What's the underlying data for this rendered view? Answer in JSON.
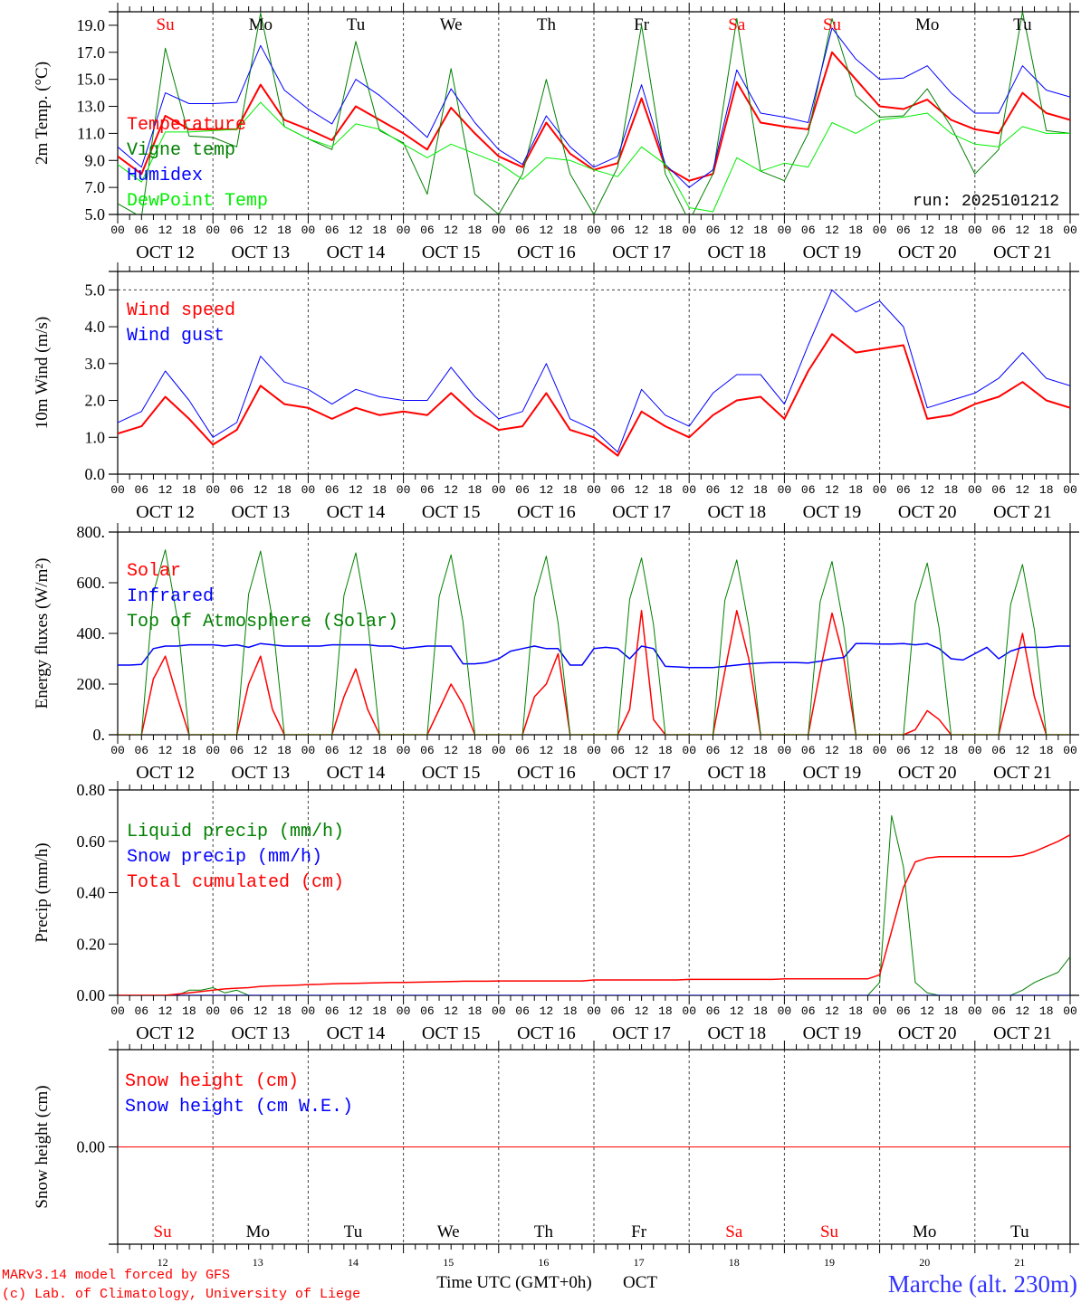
{
  "x_axis": {
    "hour_labels": [
      "00",
      "06",
      "12",
      "18"
    ],
    "date_labels": [
      "OCT 12",
      "OCT 13",
      "OCT 14",
      "OCT 15",
      "OCT 16",
      "OCT 17",
      "OCT 18",
      "OCT 19",
      "OCT 20",
      "OCT 21"
    ],
    "final_hour_label": "00",
    "day_names": [
      "Su",
      "Mo",
      "Tu",
      "We",
      "Th",
      "Fr",
      "Sa",
      "Su",
      "Mo",
      "Tu"
    ],
    "day_name_colors": [
      "#ff0000",
      "#000000",
      "#000000",
      "#000000",
      "#000000",
      "#000000",
      "#ff0000",
      "#ff0000",
      "#000000",
      "#000000"
    ],
    "day_numbers": [
      "12",
      "13",
      "14",
      "15",
      "16",
      "17",
      "18",
      "19",
      "20",
      "21"
    ],
    "xlabel": "Time UTC (GMT+0h)",
    "month": "OCT",
    "range_hours": [
      0,
      240
    ]
  },
  "footer": {
    "model": "MARv3.14 model forced by GFS",
    "credit": "(c) Lab. of Climatology, University of Liege",
    "location": "Marche (alt. 230m)"
  },
  "run_label": "run: 2025101212",
  "chart_data": [
    {
      "type": "line",
      "id": "temperature",
      "ylabel": "2m Temp. (°C)",
      "ylim": [
        5,
        20
      ],
      "yticks": [
        5,
        7,
        9,
        11,
        13,
        15,
        17,
        19
      ],
      "ytick_labels": [
        "5.0",
        "7.0",
        "9.0",
        "11.0",
        "13.0",
        "15.0",
        "17.0",
        "19.0"
      ],
      "series": [
        {
          "name": "Temperature",
          "color": "#ff0000",
          "width": 2,
          "step_hours": 6,
          "values": [
            9.3,
            8.0,
            12.3,
            11.3,
            11.3,
            11.3,
            14.6,
            12.0,
            11.3,
            10.5,
            13.0,
            12.0,
            11.0,
            9.8,
            12.9,
            11.0,
            9.3,
            8.5,
            11.8,
            9.5,
            8.3,
            8.8,
            13.6,
            8.5,
            7.5,
            8.0,
            14.8,
            11.8,
            11.5,
            11.3,
            17.0,
            15.0,
            13.0,
            12.8,
            13.5,
            12.0,
            11.3,
            11.0,
            14.0,
            12.5,
            12.0
          ]
        },
        {
          "name": "Vigne temp",
          "color": "#008000",
          "width": 1,
          "step_hours": 6,
          "values": [
            5.8,
            4.8,
            17.3,
            10.8,
            10.7,
            10.0,
            19.9,
            11.5,
            10.6,
            9.8,
            17.8,
            11.2,
            10.3,
            6.5,
            15.8,
            6.5,
            5.0,
            8.0,
            15.0,
            8.0,
            5.0,
            8.5,
            19.0,
            8.0,
            4.5,
            8.0,
            19.5,
            8.2,
            7.5,
            11.0,
            19.5,
            13.8,
            12.2,
            12.3,
            14.3,
            11.5,
            8.0,
            9.8,
            20.0,
            11.2,
            11.0
          ]
        },
        {
          "name": "Humidex",
          "color": "#0000ff",
          "width": 1,
          "step_hours": 6,
          "values": [
            10.0,
            8.5,
            14.0,
            13.2,
            13.2,
            13.3,
            17.5,
            14.2,
            12.8,
            11.7,
            15.0,
            13.8,
            12.3,
            10.7,
            14.3,
            11.8,
            9.8,
            8.7,
            12.3,
            10.0,
            8.5,
            9.3,
            14.6,
            8.7,
            7.0,
            8.3,
            15.7,
            12.5,
            12.2,
            11.8,
            18.8,
            16.5,
            15.0,
            15.1,
            16.0,
            14.0,
            12.5,
            12.5,
            16.0,
            14.2,
            13.7
          ]
        },
        {
          "name": "DewPoint Temp",
          "color": "#00ee00",
          "width": 1,
          "step_hours": 6,
          "values": [
            8.7,
            7.4,
            11.1,
            11.1,
            11.2,
            11.3,
            13.3,
            11.5,
            10.6,
            10.0,
            11.7,
            11.3,
            10.2,
            9.2,
            10.2,
            9.5,
            8.8,
            7.6,
            9.2,
            9.0,
            8.3,
            7.8,
            10.0,
            8.7,
            5.5,
            5.2,
            9.2,
            8.2,
            8.8,
            8.5,
            11.8,
            11.0,
            12.0,
            12.2,
            12.5,
            11.0,
            10.2,
            10.0,
            11.5,
            11.0,
            11.0
          ]
        }
      ]
    },
    {
      "type": "line",
      "id": "wind",
      "ylabel": "10m Wind (m/s)",
      "ylim": [
        0,
        5.5
      ],
      "yticks": [
        0,
        1,
        2,
        3,
        4,
        5
      ],
      "ytick_labels": [
        "0.0",
        "1.0",
        "2.0",
        "3.0",
        "4.0",
        "5.0"
      ],
      "reference_line": 5.0,
      "series": [
        {
          "name": "Wind speed",
          "color": "#ff0000",
          "width": 2,
          "step_hours": 6,
          "values": [
            1.1,
            1.3,
            2.1,
            1.5,
            0.8,
            1.2,
            2.4,
            1.9,
            1.8,
            1.5,
            1.8,
            1.6,
            1.7,
            1.6,
            2.2,
            1.6,
            1.2,
            1.3,
            2.2,
            1.2,
            1.0,
            0.5,
            1.7,
            1.3,
            1.0,
            1.6,
            2.0,
            2.1,
            1.5,
            2.8,
            3.8,
            3.3,
            3.4,
            3.5,
            1.5,
            1.6,
            1.9,
            2.1,
            2.5,
            2.0,
            1.8
          ]
        },
        {
          "name": "Wind gust",
          "color": "#0000ff",
          "width": 1,
          "step_hours": 6,
          "values": [
            1.4,
            1.7,
            2.8,
            2.0,
            1.0,
            1.4,
            3.2,
            2.5,
            2.3,
            1.9,
            2.3,
            2.1,
            2.0,
            2.0,
            2.9,
            2.1,
            1.5,
            1.7,
            3.0,
            1.5,
            1.2,
            0.6,
            2.3,
            1.6,
            1.3,
            2.2,
            2.7,
            2.7,
            1.9,
            3.5,
            5.0,
            4.4,
            4.7,
            4.0,
            1.8,
            2.0,
            2.2,
            2.6,
            3.3,
            2.6,
            2.4
          ]
        }
      ]
    },
    {
      "type": "line",
      "id": "energy",
      "ylabel": "Energy fluxes (W/m²)",
      "ylim": [
        0,
        800
      ],
      "yticks": [
        0,
        200,
        400,
        600,
        800
      ],
      "ytick_labels": [
        "0.",
        "200.",
        "400.",
        "600.",
        "800."
      ],
      "series": [
        {
          "name": "Solar",
          "color": "#ff0000",
          "width": 1.5,
          "step_hours": 3,
          "values": [
            0,
            0,
            0,
            220,
            310,
            150,
            0,
            0,
            0,
            0,
            0,
            200,
            310,
            100,
            0,
            0,
            0,
            0,
            0,
            150,
            260,
            100,
            0,
            0,
            0,
            0,
            0,
            100,
            200,
            120,
            0,
            0,
            0,
            0,
            0,
            150,
            200,
            320,
            0,
            0,
            0,
            0,
            0,
            100,
            490,
            60,
            0,
            0,
            0,
            0,
            0,
            250,
            490,
            300,
            0,
            0,
            0,
            0,
            0,
            250,
            480,
            300,
            0,
            0,
            0,
            0,
            0,
            20,
            95,
            60,
            0,
            0,
            0,
            0,
            0,
            200,
            400,
            150,
            0,
            0,
            0
          ]
        },
        {
          "name": "Infrared",
          "color": "#0000ff",
          "width": 1.5,
          "step_hours": 3,
          "values": [
            275,
            275,
            278,
            340,
            350,
            350,
            355,
            355,
            355,
            350,
            355,
            345,
            360,
            355,
            350,
            350,
            350,
            350,
            355,
            355,
            355,
            355,
            350,
            350,
            340,
            345,
            350,
            350,
            350,
            280,
            280,
            285,
            300,
            330,
            340,
            350,
            340,
            340,
            275,
            275,
            340,
            345,
            340,
            300,
            350,
            340,
            270,
            268,
            265,
            265,
            265,
            270,
            275,
            280,
            283,
            285,
            285,
            285,
            283,
            290,
            300,
            305,
            360,
            360,
            358,
            358,
            360,
            355,
            360,
            340,
            300,
            295,
            320,
            345,
            300,
            330,
            345,
            345,
            345,
            350,
            350
          ]
        },
        {
          "name": "Top of Atmosphere (Solar)",
          "color": "#008000",
          "width": 1,
          "step_hours": 3,
          "values": [
            0,
            0,
            0,
            560,
            730,
            460,
            0,
            0,
            0,
            0,
            0,
            555,
            725,
            455,
            0,
            0,
            0,
            0,
            0,
            550,
            718,
            450,
            0,
            0,
            0,
            0,
            0,
            545,
            710,
            445,
            0,
            0,
            0,
            0,
            0,
            540,
            705,
            440,
            0,
            0,
            0,
            0,
            0,
            535,
            698,
            435,
            0,
            0,
            0,
            0,
            0,
            530,
            690,
            430,
            0,
            0,
            0,
            0,
            0,
            525,
            684,
            425,
            0,
            0,
            0,
            0,
            0,
            520,
            678,
            420,
            0,
            0,
            0,
            0,
            0,
            515,
            672,
            415,
            0,
            0,
            0
          ]
        }
      ]
    },
    {
      "type": "line",
      "id": "precip",
      "ylabel": "Precip (mm/h)",
      "ylim": [
        0,
        0.8
      ],
      "yticks": [
        0,
        0.2,
        0.4,
        0.6,
        0.8
      ],
      "ytick_labels": [
        "0.00",
        "0.20",
        "0.40",
        "0.60",
        "0.80"
      ],
      "series": [
        {
          "name": "Liquid precip (mm/h)",
          "color": "#008000",
          "width": 1,
          "step_hours": 3,
          "values": [
            0,
            0,
            0,
            0,
            0,
            0,
            0.02,
            0.02,
            0.03,
            0.01,
            0.02,
            0,
            0,
            0,
            0,
            0,
            0,
            0,
            0,
            0,
            0,
            0,
            0,
            0,
            0,
            0,
            0,
            0,
            0,
            0,
            0,
            0,
            0,
            0,
            0,
            0,
            0,
            0,
            0,
            0,
            0,
            0,
            0,
            0,
            0,
            0,
            0,
            0,
            0,
            0,
            0,
            0,
            0,
            0,
            0,
            0,
            0,
            0,
            0,
            0,
            0,
            0,
            0,
            0,
            0.05,
            0.7,
            0.5,
            0.05,
            0.01,
            0,
            0,
            0,
            0,
            0,
            0,
            0,
            0.02,
            0.05,
            0.07,
            0.09,
            0.15
          ]
        },
        {
          "name": "Snow precip (mm/h)",
          "color": "#0000ff",
          "width": 1,
          "step_hours": 240,
          "values": [
            0,
            0
          ]
        },
        {
          "name": "Total cumulated (cm)",
          "color": "#ff0000",
          "width": 1.5,
          "step_hours": 3,
          "values": [
            0,
            0,
            0,
            0,
            0,
            0.005,
            0.01,
            0.015,
            0.02,
            0.025,
            0.028,
            0.03,
            0.035,
            0.037,
            0.038,
            0.04,
            0.042,
            0.043,
            0.045,
            0.046,
            0.047,
            0.048,
            0.049,
            0.05,
            0.05,
            0.051,
            0.052,
            0.053,
            0.054,
            0.055,
            0.055,
            0.055,
            0.056,
            0.056,
            0.056,
            0.056,
            0.056,
            0.056,
            0.056,
            0.056,
            0.06,
            0.06,
            0.06,
            0.06,
            0.06,
            0.06,
            0.06,
            0.06,
            0.062,
            0.062,
            0.062,
            0.062,
            0.062,
            0.062,
            0.062,
            0.062,
            0.064,
            0.064,
            0.064,
            0.064,
            0.064,
            0.064,
            0.064,
            0.064,
            0.08,
            0.25,
            0.42,
            0.52,
            0.535,
            0.54,
            0.54,
            0.54,
            0.54,
            0.54,
            0.54,
            0.54,
            0.545,
            0.56,
            0.58,
            0.6,
            0.625
          ]
        }
      ]
    },
    {
      "type": "line",
      "id": "snow",
      "ylabel": "Snow height (cm)",
      "ylim": [
        -1,
        1
      ],
      "yticks": [
        0
      ],
      "ytick_labels": [
        "0.00"
      ],
      "series": [
        {
          "name": "Snow height (cm W.E.)",
          "color": "#0000ff",
          "width": 1,
          "step_hours": 240,
          "values": [
            0,
            0
          ],
          "legend_order": 1
        },
        {
          "name": "Snow height (cm)",
          "color": "#ff0000",
          "width": 1,
          "step_hours": 240,
          "values": [
            0,
            0
          ],
          "legend_order": 0
        }
      ]
    }
  ]
}
